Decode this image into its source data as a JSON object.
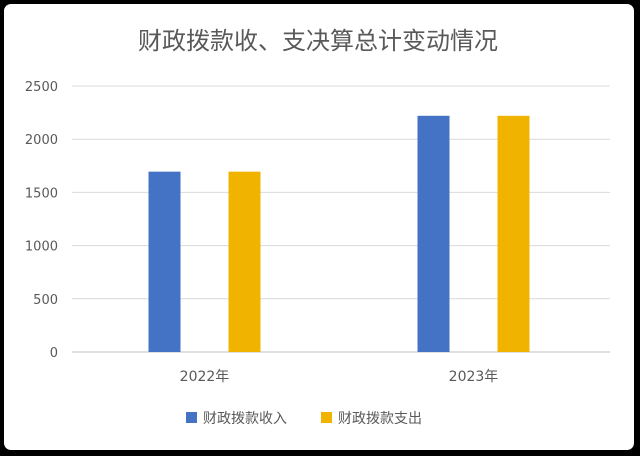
{
  "chart_data": {
    "type": "bar",
    "title": "财政拨款收、支决算总计变动情况",
    "categories": [
      "2022年",
      "2023年"
    ],
    "series": [
      {
        "name": "财政拨款收入",
        "values": [
          1695,
          2220
        ],
        "color": "#4472C4"
      },
      {
        "name": "财政拨款支出",
        "values": [
          1695,
          2220
        ],
        "color": "#F0B400"
      }
    ],
    "ylim": [
      0,
      2500
    ],
    "yticks": [
      0,
      500,
      1000,
      1500,
      2000,
      2500
    ],
    "grid": true,
    "legend": "bottom"
  }
}
